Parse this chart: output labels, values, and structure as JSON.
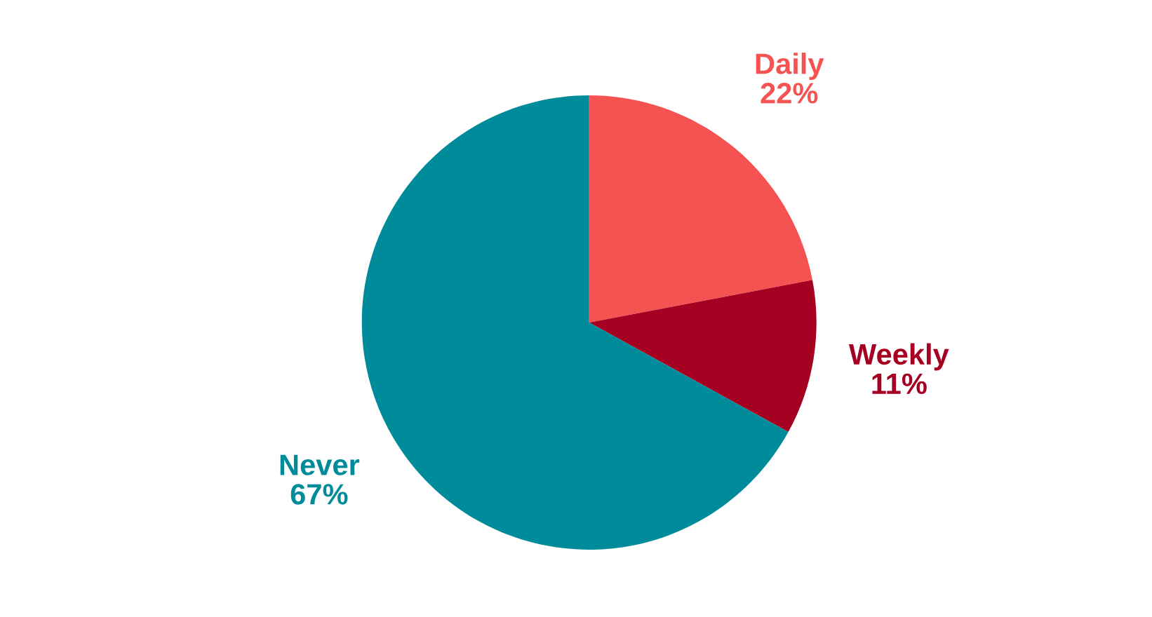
{
  "chart_data": {
    "type": "pie",
    "categories": [
      "Daily",
      "Weekly",
      "Never"
    ],
    "values": [
      22,
      11,
      67
    ],
    "value_labels": [
      "22%",
      "11%",
      "67%"
    ],
    "colors": [
      "#f55252",
      "#a50021",
      "#008b9a"
    ],
    "legend": false
  }
}
